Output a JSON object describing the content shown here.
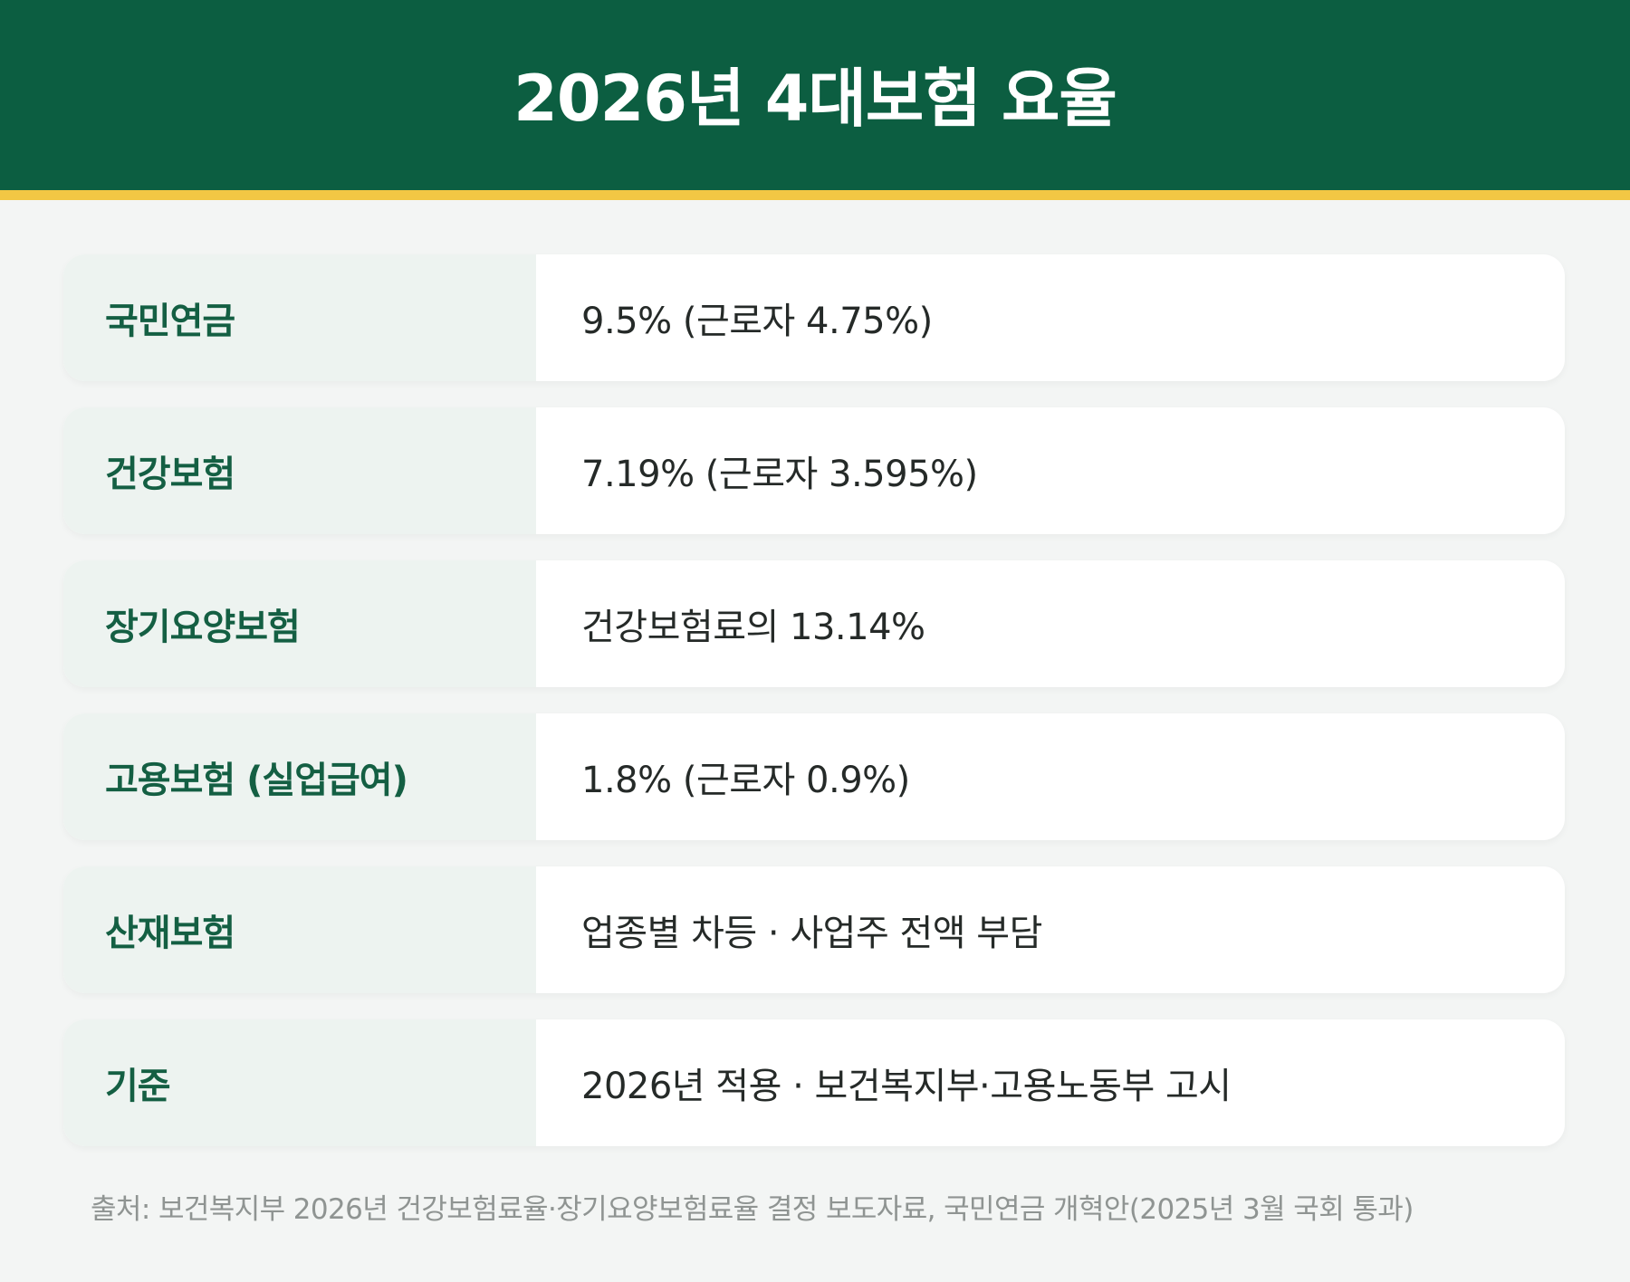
{
  "header": {
    "title": "2026년 4대보험 요율"
  },
  "rows": [
    {
      "label": "국민연금",
      "value": "9.5% (근로자 4.75%)"
    },
    {
      "label": "건강보험",
      "value": "7.19% (근로자 3.595%)"
    },
    {
      "label": "장기요양보험",
      "value": "건강보험료의 13.14%"
    },
    {
      "label": "고용보험 (실업급여)",
      "value": "1.8% (근로자 0.9%)"
    },
    {
      "label": "산재보험",
      "value": "업종별 차등 · 사업주 전액 부담"
    },
    {
      "label": "기준",
      "value": "2026년 적용 · 보건복지부·고용노동부 고시"
    }
  ],
  "footer": {
    "source": "출처: 보건복지부 2026년 건강보험료율·장기요양보험료율 결정 보도자료, 국민연금 개혁안(2025년 3월 국회 통과)"
  },
  "colors": {
    "header_background": "#0c5e41",
    "accent_bar": "#f2c744",
    "label_text": "#145f43"
  }
}
